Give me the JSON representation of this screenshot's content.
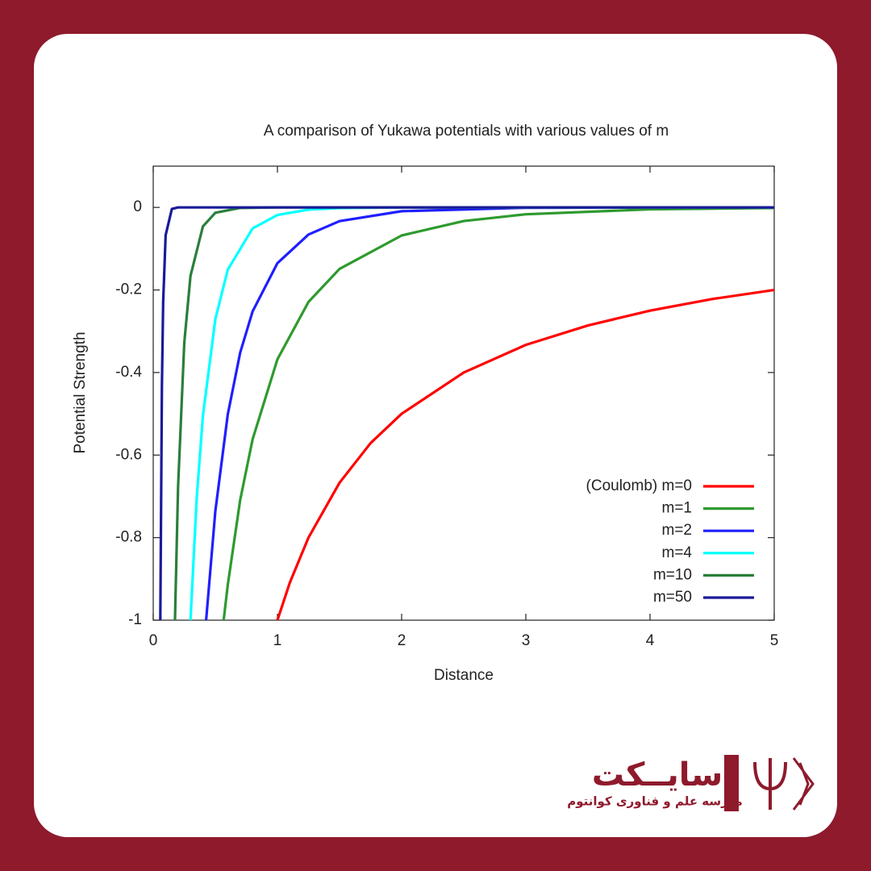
{
  "chart_data": {
    "type": "line",
    "title": "A comparison of Yukawa potentials with various values of m",
    "x_label": "Distance",
    "y_label": "Potential Strength",
    "xlim": [
      0,
      5
    ],
    "ylim": [
      -1,
      0.1
    ],
    "xticks": [
      0,
      1,
      2,
      3,
      4,
      5
    ],
    "yticks": [
      -1,
      -0.8,
      -0.6,
      -0.4,
      -0.2,
      0
    ],
    "legend": "lower right",
    "grid": false,
    "series": [
      {
        "name": "(Coulomb) m=0",
        "color": "#ff0000",
        "x": [
          1,
          1.1,
          1.25,
          1.5,
          1.75,
          2,
          2.5,
          3,
          3.5,
          4,
          4.5,
          5
        ],
        "values": [
          -1,
          -0.909,
          -0.8,
          -0.667,
          -0.571,
          -0.5,
          -0.4,
          -0.333,
          -0.286,
          -0.25,
          -0.222,
          -0.2
        ]
      },
      {
        "name": "m=1",
        "color": "#2e9a2e",
        "x": [
          0.567,
          0.6,
          0.7,
          0.8,
          1,
          1.25,
          1.5,
          2,
          2.5,
          3,
          4,
          5
        ],
        "values": [
          -1,
          -0.915,
          -0.709,
          -0.562,
          -0.368,
          -0.229,
          -0.149,
          -0.068,
          -0.033,
          -0.0166,
          -0.0046,
          -0.0013
        ]
      },
      {
        "name": "m=2",
        "color": "#1f1fff",
        "x": [
          0.426,
          0.5,
          0.6,
          0.7,
          0.8,
          1,
          1.25,
          1.5,
          2,
          3,
          5
        ],
        "values": [
          -1,
          -0.736,
          -0.502,
          -0.352,
          -0.252,
          -0.135,
          -0.0657,
          -0.0332,
          -0.0092,
          -0.0008,
          0
        ]
      },
      {
        "name": "m=4",
        "color": "#00ffff",
        "x": [
          0.3,
          0.35,
          0.4,
          0.5,
          0.6,
          0.8,
          1,
          1.25,
          1.5,
          2,
          5
        ],
        "values": [
          -1,
          -0.705,
          -0.505,
          -0.271,
          -0.151,
          -0.051,
          -0.0183,
          -0.0054,
          -0.0017,
          0,
          0
        ]
      },
      {
        "name": "m=10",
        "color": "#2a7f3a",
        "x": [
          0.175,
          0.2,
          0.25,
          0.3,
          0.4,
          0.5,
          0.7,
          1,
          5
        ],
        "values": [
          -1,
          -0.677,
          -0.328,
          -0.166,
          -0.046,
          -0.013,
          -0.0013,
          0,
          0
        ]
      },
      {
        "name": "m=50",
        "color": "#1a1a9a",
        "x": [
          0.057,
          0.07,
          0.08,
          0.1,
          0.15,
          0.2,
          5
        ],
        "values": [
          -1,
          -0.431,
          -0.229,
          -0.067,
          -0.0037,
          0,
          0
        ]
      }
    ]
  },
  "logo": {
    "name": "سایــکت",
    "tagline": "مدرسه علم و فناوری کوانتوم"
  }
}
